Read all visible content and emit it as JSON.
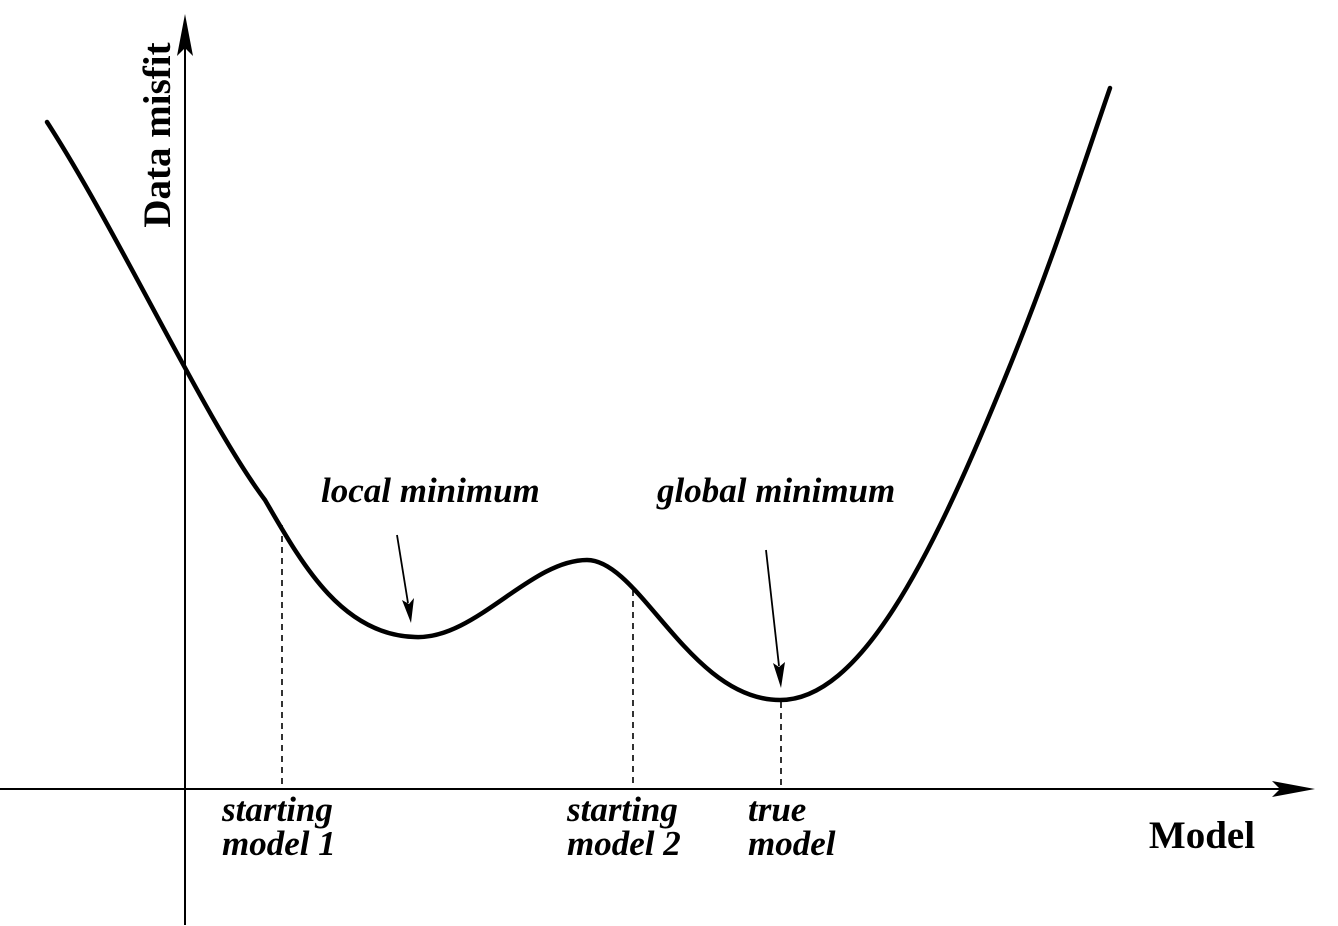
{
  "axes": {
    "y_label": "Data misfit",
    "x_label": "Model"
  },
  "annotations": {
    "local_minimum": "local minimum",
    "global_minimum": "global minimum"
  },
  "markers": [
    {
      "line1": "starting",
      "line2": "model 1"
    },
    {
      "line1": "starting",
      "line2": "model 2"
    },
    {
      "line1": "true",
      "line2": "model"
    }
  ]
}
